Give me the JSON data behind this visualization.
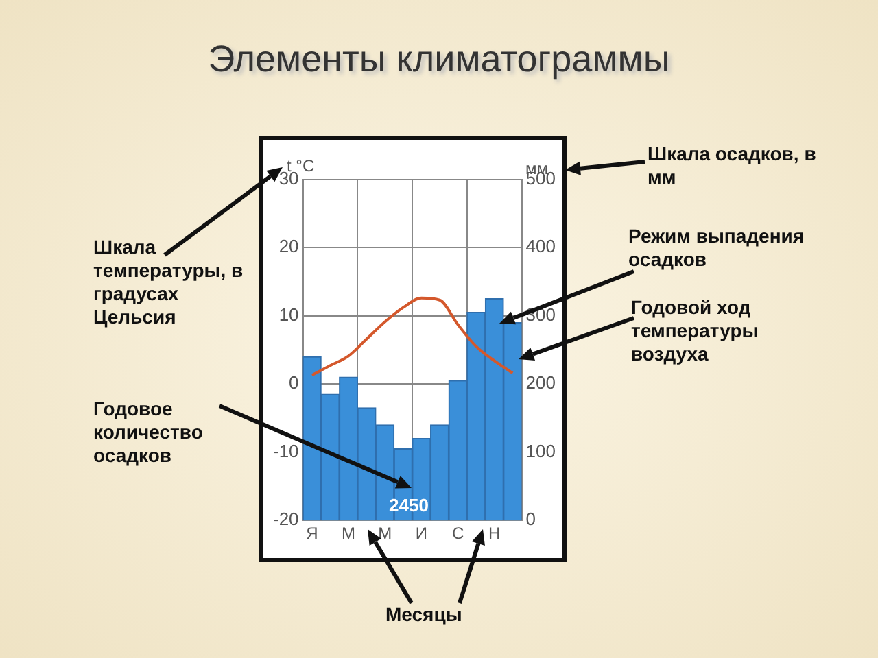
{
  "chart_data": {
    "type": "bar",
    "title": "Элементы климатограммы",
    "ylabel": "t °C",
    "y2label": "мм",
    "categories": [
      "Я",
      null,
      "М",
      null,
      "М",
      null,
      "И",
      null,
      "С",
      null,
      "Н",
      null
    ],
    "series": [
      {
        "axis": "y2",
        "color": "#3a8fd9",
        "values": [
          240,
          185,
          210,
          165,
          140,
          105,
          120,
          140,
          205,
          305,
          325,
          290
        ]
      },
      {
        "type": "line",
        "axis": "y",
        "color": "#d4582c",
        "values": [
          1.3,
          2.7,
          4.1,
          6.6,
          9.1,
          11.2,
          12.6,
          12.3,
          8.7,
          5.5,
          3.4,
          1.6
        ]
      }
    ],
    "ylim": [
      -20,
      30
    ],
    "yticks": [
      -20,
      -10,
      0,
      10,
      20,
      30
    ],
    "y2lim": [
      0,
      500
    ],
    "y2ticks": [
      0,
      100,
      200,
      300,
      400,
      500
    ],
    "grid": true,
    "legend": false,
    "marker": "none",
    "annotations": [
      "Шкала осадков, в мм",
      "Режим выпадения осадков",
      "Годовой ход температуры воздуха",
      "Шкала температуры, в градусах Цельсия",
      "Годовое количество осадков",
      "Месяцы",
      "2450"
    ]
  }
}
